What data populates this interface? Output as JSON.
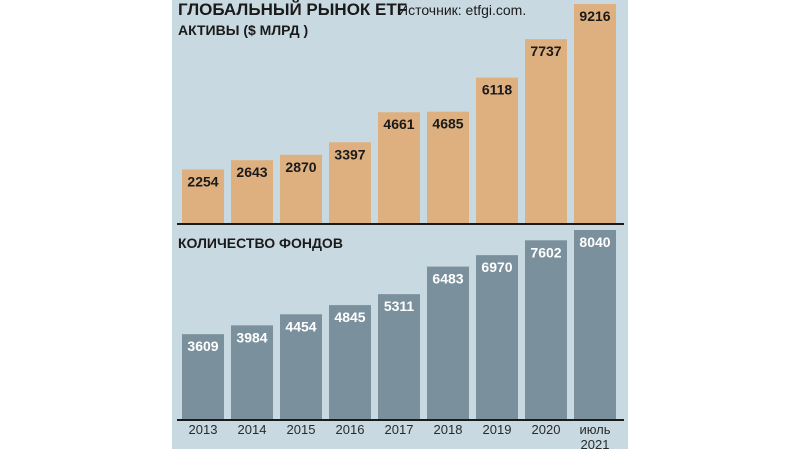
{
  "title": "ГЛОБАЛЬНЫЙ РЫНОК ETF",
  "source": "Источник: etfgi.com.",
  "colors": {
    "background": "#c9d9e1",
    "assets_bar": "#deb07f",
    "funds_bar": "#7a909c",
    "axis": "#1a1a1a"
  },
  "chart_data": [
    {
      "type": "bar",
      "title": "АКТИВЫ ($ МЛРД )",
      "categories": [
        "2013",
        "2014",
        "2015",
        "2016",
        "2017",
        "2018",
        "2019",
        "2020",
        "июль 2021"
      ],
      "values": [
        2254,
        2643,
        2870,
        3397,
        4661,
        4685,
        6118,
        7737,
        9216
      ],
      "ylim": [
        0,
        9216
      ],
      "grid": false
    },
    {
      "type": "bar",
      "title": "КОЛИЧЕСТВО ФОНДОВ",
      "categories": [
        "2013",
        "2014",
        "2015",
        "2016",
        "2017",
        "2018",
        "2019",
        "2020",
        "июль 2021"
      ],
      "values": [
        3609,
        3984,
        4454,
        4845,
        5311,
        6483,
        6970,
        7602,
        8040
      ],
      "ylim": [
        0,
        8040
      ],
      "grid": false
    }
  ],
  "x_labels": [
    [
      "2013"
    ],
    [
      "2014"
    ],
    [
      "2015"
    ],
    [
      "2016"
    ],
    [
      "2017"
    ],
    [
      "2018"
    ],
    [
      "2019"
    ],
    [
      "2020"
    ],
    [
      "июль",
      "2021"
    ]
  ]
}
